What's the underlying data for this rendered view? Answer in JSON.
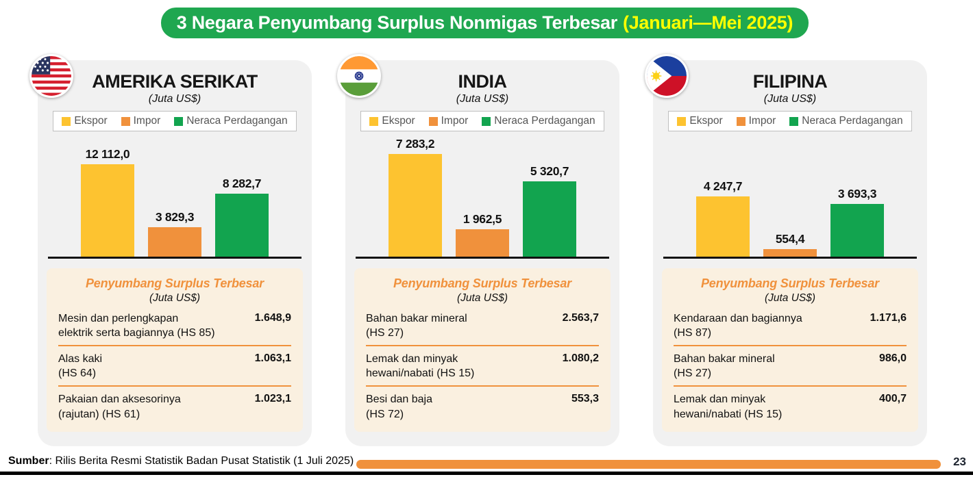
{
  "header": {
    "title_main": "3 Negara Penyumbang Surplus Nonmigas Terbesar",
    "title_period": "(Januari—Mei 2025)"
  },
  "colors": {
    "header_green": "#1fa750",
    "header_period_yellow": "#ffff00",
    "ekspor_yellow": "#fdc330",
    "impor_orange": "#f0913c",
    "neraca_green": "#12a44f",
    "table_bg_cream": "#faf0e0",
    "accent_orange": "#f0913c"
  },
  "legend": {
    "items": [
      {
        "label": "Ekspor",
        "color": "#fdc330"
      },
      {
        "label": "Impor",
        "color": "#f0913c"
      },
      {
        "label": "Neraca Perdagangan",
        "color": "#12a44f"
      }
    ]
  },
  "panels": [
    {
      "country": "AMERIKA SERIKAT",
      "unit": "(Juta US$)",
      "flag": "us-flag",
      "chart": {
        "values": [
          12112.0,
          3829.3,
          8282.7
        ],
        "labels": [
          "12 112,0",
          "3 829,3",
          "8 282,7"
        ]
      },
      "table": {
        "title": "Penyumbang Surplus Terbesar",
        "unit": "(Juta US$)",
        "rows": [
          {
            "name": "Mesin dan perlengkapan\nelektrik serta bagiannya (HS 85)",
            "value": "1.648,9"
          },
          {
            "name": "Alas kaki\n(HS 64)",
            "value": "1.063,1"
          },
          {
            "name": "Pakaian dan aksesorinya\n(rajutan) (HS 61)",
            "value": "1.023,1"
          }
        ]
      }
    },
    {
      "country": "INDIA",
      "unit": "(Juta US$)",
      "flag": "india-flag",
      "chart": {
        "values": [
          7283.2,
          1962.5,
          5320.7
        ],
        "labels": [
          "7 283,2",
          "1 962,5",
          "5 320,7"
        ]
      },
      "table": {
        "title": "Penyumbang Surplus Terbesar",
        "unit": "(Juta US$)",
        "rows": [
          {
            "name": "Bahan bakar mineral\n(HS 27)",
            "value": "2.563,7"
          },
          {
            "name": "Lemak dan minyak\nhewani/nabati (HS 15)",
            "value": "1.080,2"
          },
          {
            "name": "Besi dan baja\n(HS 72)",
            "value": "553,3"
          }
        ]
      }
    },
    {
      "country": "FILIPINA",
      "unit": "(Juta US$)",
      "flag": "philippines-flag",
      "chart": {
        "values": [
          4247.7,
          554.4,
          3693.3
        ],
        "labels": [
          "4 247,7",
          "554,4",
          "3 693,3"
        ]
      },
      "table": {
        "title": "Penyumbang Surplus Terbesar",
        "unit": "(Juta US$)",
        "rows": [
          {
            "name": "Kendaraan dan bagiannya\n(HS 87)",
            "value": "1.171,6"
          },
          {
            "name": "Bahan bakar mineral\n(HS 27)",
            "value": "986,0"
          },
          {
            "name": "Lemak dan minyak\nhewani/nabati (HS 15)",
            "value": "400,7"
          }
        ]
      }
    }
  ],
  "footer": {
    "source_label": "Sumber",
    "source_rest": ": Rilis Berita Resmi Statistik Badan Pusat Statistik (1 Juli 2025)",
    "page_number": "23"
  },
  "chart_data": [
    {
      "type": "bar",
      "title": "Amerika Serikat (Juta US$)",
      "categories": [
        "Ekspor",
        "Impor",
        "Neraca Perdagangan"
      ],
      "values": [
        12112.0,
        3829.3,
        8282.7
      ],
      "xlabel": "",
      "ylabel": "Juta US$",
      "legend_position": "top",
      "grid": false,
      "data_labels": true
    },
    {
      "type": "bar",
      "title": "India (Juta US$)",
      "categories": [
        "Ekspor",
        "Impor",
        "Neraca Perdagangan"
      ],
      "values": [
        7283.2,
        1962.5,
        5320.7
      ],
      "xlabel": "",
      "ylabel": "Juta US$",
      "legend_position": "top",
      "grid": false,
      "data_labels": true
    },
    {
      "type": "bar",
      "title": "Filipina (Juta US$)",
      "categories": [
        "Ekspor",
        "Impor",
        "Neraca Perdagangan"
      ],
      "values": [
        4247.7,
        554.4,
        3693.3
      ],
      "xlabel": "",
      "ylabel": "Juta US$",
      "legend_position": "top",
      "grid": false,
      "data_labels": true
    }
  ]
}
